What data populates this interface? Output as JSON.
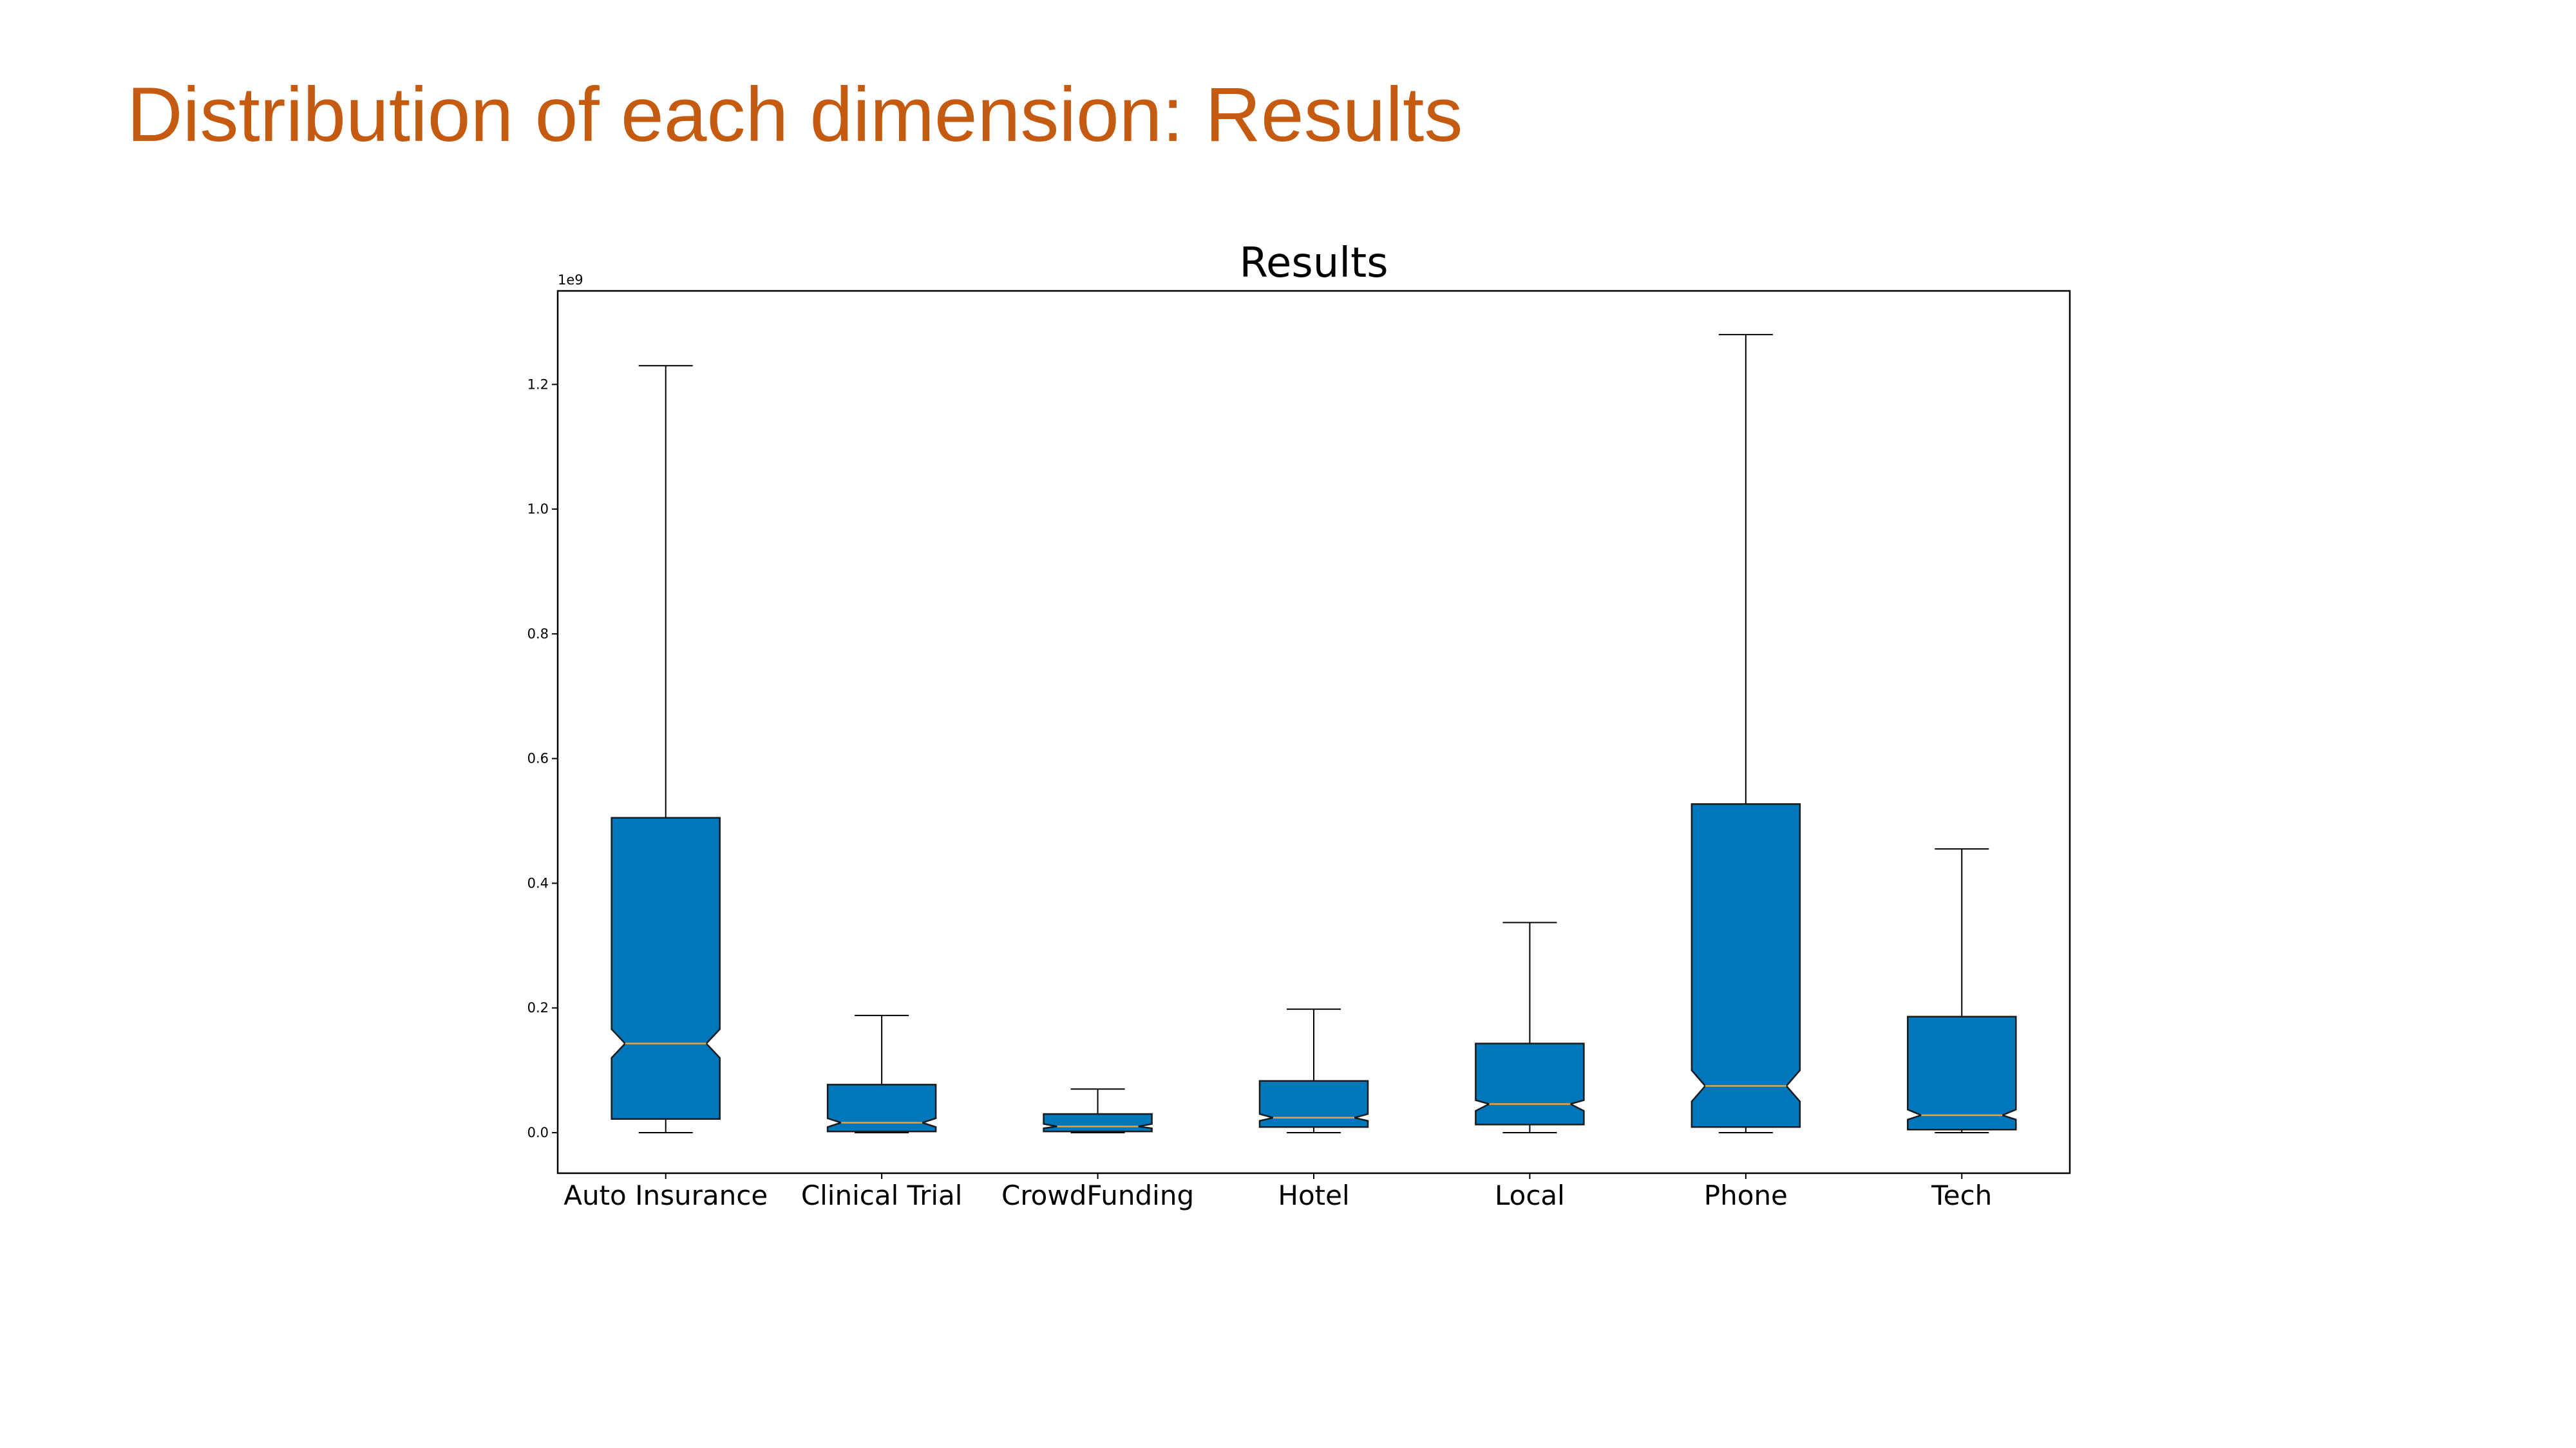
{
  "slide": {
    "title": "Distribution of each dimension: Results",
    "title_color": "#c55a11"
  },
  "chart_data": {
    "type": "boxplot",
    "title": "Results",
    "xlabel": "",
    "ylabel": "",
    "scale_label": "1e9",
    "scale_factor": 1000000000,
    "ylim": [
      -0.065,
      1.35
    ],
    "yticks": [
      0.0,
      0.2,
      0.4,
      0.6,
      0.8,
      1.0,
      1.2
    ],
    "ytick_labels": [
      "0.0",
      "0.2",
      "0.4",
      "0.6",
      "0.8",
      "1.0",
      "1.2"
    ],
    "notched": true,
    "box_color": "#0077bb",
    "median_color": "#e8a33c",
    "grid": false,
    "categories": [
      "Auto Insurance",
      "Clinical Trial",
      "CrowdFunding",
      "Hotel",
      "Local",
      "Phone",
      "Tech"
    ],
    "boxes": [
      {
        "whisker_low": 0.0,
        "q1": 0.022,
        "notch_low": 0.12,
        "median": 0.143,
        "notch_high": 0.166,
        "q3": 0.505,
        "whisker_high": 1.23
      },
      {
        "whisker_low": 0.0,
        "q1": 0.002,
        "notch_low": 0.009,
        "median": 0.016,
        "notch_high": 0.023,
        "q3": 0.077,
        "whisker_high": 0.188
      },
      {
        "whisker_low": 0.0,
        "q1": 0.002,
        "notch_low": 0.007,
        "median": 0.01,
        "notch_high": 0.014,
        "q3": 0.03,
        "whisker_high": 0.07
      },
      {
        "whisker_low": 0.0,
        "q1": 0.009,
        "notch_low": 0.019,
        "median": 0.024,
        "notch_high": 0.03,
        "q3": 0.083,
        "whisker_high": 0.198
      },
      {
        "whisker_low": 0.0,
        "q1": 0.013,
        "notch_low": 0.035,
        "median": 0.046,
        "notch_high": 0.052,
        "q3": 0.143,
        "whisker_high": 0.337
      },
      {
        "whisker_low": 0.0,
        "q1": 0.009,
        "notch_low": 0.05,
        "median": 0.075,
        "notch_high": 0.1,
        "q3": 0.527,
        "whisker_high": 1.28
      },
      {
        "whisker_low": 0.0,
        "q1": 0.005,
        "notch_low": 0.021,
        "median": 0.028,
        "notch_high": 0.037,
        "q3": 0.186,
        "whisker_high": 0.455
      }
    ]
  }
}
